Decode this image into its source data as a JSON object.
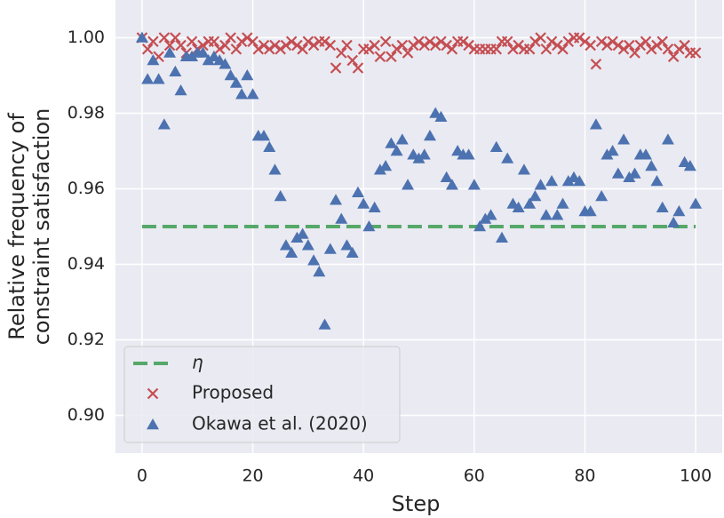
{
  "chart_data": {
    "type": "scatter",
    "xlabel": "Step",
    "ylabel": [
      "Relative frequency of",
      "constraint satisfaction"
    ],
    "xlim": [
      -4.8,
      104.8
    ],
    "ylim": [
      0.89,
      1.01
    ],
    "xticks": [
      0,
      20,
      40,
      60,
      80,
      100
    ],
    "yticks": [
      {
        "value": 0.9,
        "label": "0.90"
      },
      0.92,
      0.94,
      0.96,
      0.98,
      {
        "value": 1.0,
        "label": "1.00"
      }
    ],
    "grid": true,
    "legend": "lower left",
    "threshold": {
      "name": "η",
      "color": "#55a868",
      "x": [
        0,
        100
      ],
      "values": [
        0.95,
        0.95
      ]
    },
    "x": [
      0,
      1,
      2,
      3,
      4,
      5,
      6,
      7,
      8,
      9,
      10,
      11,
      12,
      13,
      14,
      15,
      16,
      17,
      18,
      19,
      20,
      21,
      22,
      23,
      24,
      25,
      26,
      27,
      28,
      29,
      30,
      31,
      32,
      33,
      34,
      35,
      36,
      37,
      38,
      39,
      40,
      41,
      42,
      43,
      44,
      45,
      46,
      47,
      48,
      49,
      50,
      51,
      52,
      53,
      54,
      55,
      56,
      57,
      58,
      59,
      60,
      61,
      62,
      63,
      64,
      65,
      66,
      67,
      68,
      69,
      70,
      71,
      72,
      73,
      74,
      75,
      76,
      77,
      78,
      79,
      80,
      81,
      82,
      83,
      84,
      85,
      86,
      87,
      88,
      89,
      90,
      91,
      92,
      93,
      94,
      95,
      96,
      97,
      98,
      99,
      100
    ],
    "series": [
      {
        "name": "Proposed",
        "color": "#c44e52",
        "marker": "x",
        "values": [
          1.0,
          0.997,
          0.999,
          0.995,
          1.0,
          0.998,
          1.0,
          0.998,
          0.996,
          0.999,
          0.997,
          0.998,
          0.999,
          0.999,
          0.997,
          0.998,
          1.0,
          0.997,
          0.999,
          1.0,
          0.999,
          0.997,
          0.998,
          0.997,
          0.998,
          0.997,
          0.998,
          0.999,
          0.998,
          0.997,
          0.999,
          0.998,
          0.999,
          0.999,
          0.998,
          0.992,
          0.996,
          0.998,
          0.994,
          0.992,
          0.997,
          0.997,
          0.998,
          0.995,
          0.999,
          0.995,
          0.997,
          0.998,
          0.996,
          0.998,
          0.999,
          0.998,
          0.999,
          0.998,
          0.999,
          0.998,
          0.997,
          0.999,
          0.999,
          0.998,
          0.997,
          0.997,
          0.997,
          0.997,
          0.997,
          0.999,
          0.999,
          0.997,
          0.998,
          0.997,
          0.997,
          0.999,
          1.0,
          0.997,
          0.999,
          0.998,
          0.997,
          0.999,
          1.0,
          1.0,
          0.999,
          0.998,
          0.993,
          0.999,
          0.998,
          0.999,
          0.998,
          0.997,
          0.998,
          0.996,
          0.998,
          0.999,
          0.997,
          0.998,
          0.999,
          0.997,
          0.995,
          0.997,
          0.998,
          0.996,
          0.996
        ]
      },
      {
        "name": "Okawa et al. (2020)",
        "color": "#4c72b0",
        "marker": "triangle",
        "values": [
          1.0,
          0.989,
          0.994,
          0.989,
          0.977,
          0.996,
          0.991,
          0.986,
          0.995,
          0.995,
          0.996,
          0.996,
          0.994,
          0.995,
          0.994,
          0.993,
          0.99,
          0.988,
          0.985,
          0.99,
          0.985,
          0.974,
          0.974,
          0.971,
          0.965,
          0.958,
          0.945,
          0.943,
          0.947,
          0.948,
          0.945,
          0.941,
          0.938,
          0.924,
          0.944,
          0.957,
          0.952,
          0.945,
          0.943,
          0.959,
          0.956,
          0.95,
          0.955,
          0.965,
          0.966,
          0.972,
          0.97,
          0.973,
          0.961,
          0.969,
          0.968,
          0.969,
          0.974,
          0.98,
          0.979,
          0.963,
          0.961,
          0.97,
          0.969,
          0.969,
          0.961,
          0.95,
          0.952,
          0.953,
          0.971,
          0.947,
          0.968,
          0.956,
          0.955,
          0.965,
          0.956,
          0.958,
          0.961,
          0.953,
          0.962,
          0.953,
          0.956,
          0.962,
          0.963,
          0.962,
          0.954,
          0.954,
          0.977,
          0.958,
          0.969,
          0.97,
          0.964,
          0.973,
          0.963,
          0.964,
          0.969,
          0.969,
          0.966,
          0.962,
          0.955,
          0.973,
          0.951,
          0.954,
          0.967,
          0.966,
          0.956
        ]
      }
    ]
  }
}
